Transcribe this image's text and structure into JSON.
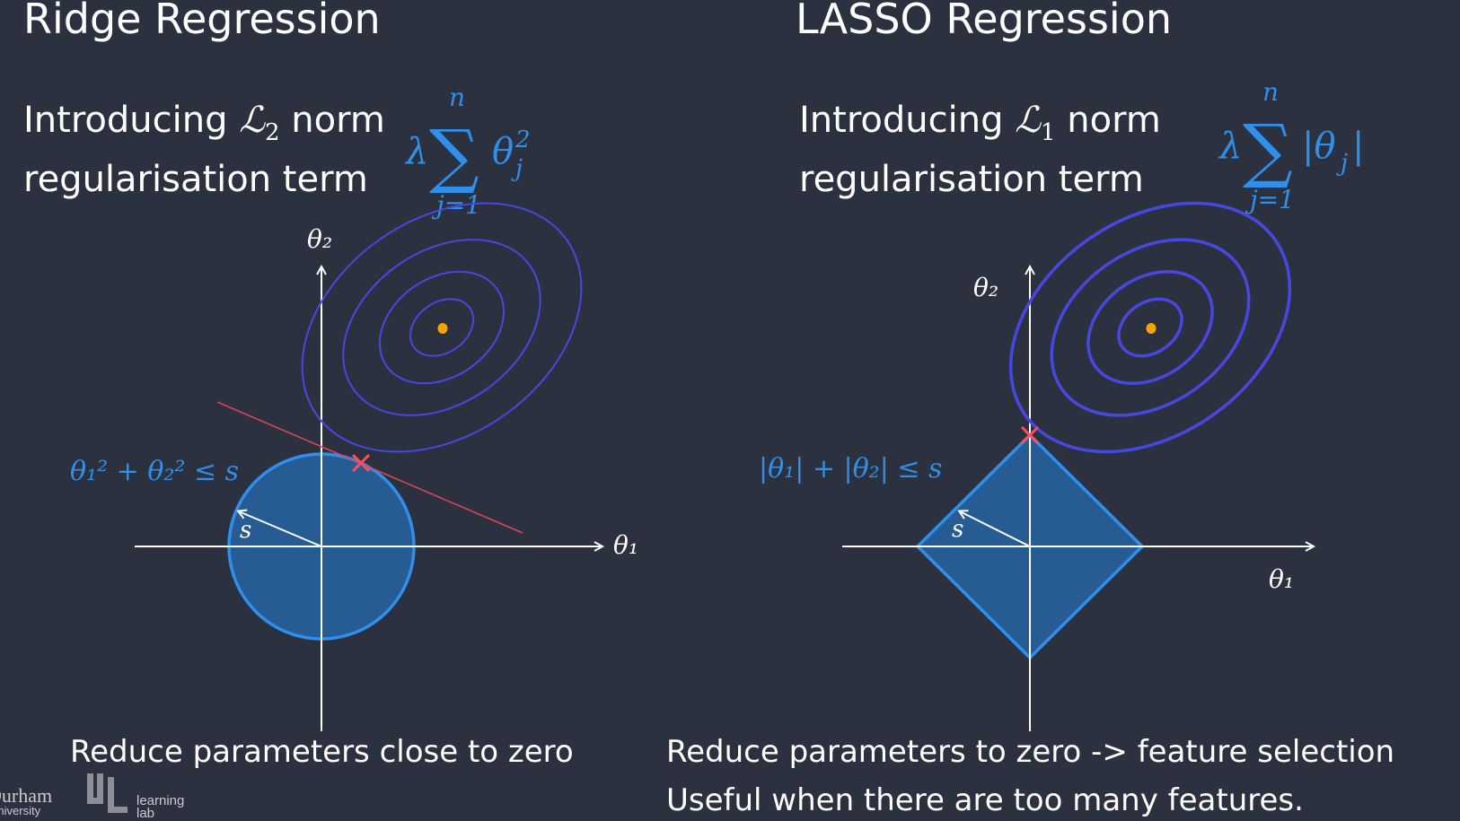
{
  "ridge": {
    "title": "Ridge Regression",
    "intro_line1": "Introducing",
    "norm_symbol": "ℒ",
    "norm_sub": "2",
    "intro_norm_word": "norm",
    "intro_line2": "regularisation term",
    "penalty_lambda": "λ",
    "penalty_sigma": "∑",
    "penalty_upper": "n",
    "penalty_lower": "j=1",
    "penalty_term": "θ",
    "penalty_term_sup": "2",
    "penalty_term_sub": "j",
    "constraint_label": "θ₁² + θ₂² ≤ s",
    "radius_label": "s",
    "axis_x_label": "θ₁",
    "axis_y_label": "θ₂",
    "caption": "Reduce parameters close to zero"
  },
  "lasso": {
    "title": "LASSO Regression",
    "intro_line1": "Introducing",
    "norm_symbol": "ℒ",
    "norm_sub": "1",
    "intro_norm_word": "norm",
    "intro_line2": "regularisation term",
    "penalty_lambda": "λ",
    "penalty_sigma": "∑",
    "penalty_upper": "n",
    "penalty_lower": "j=1",
    "penalty_term": "|θ",
    "penalty_term_sub": "j",
    "penalty_term_close": "|",
    "constraint_label": "|θ₁| + |θ₂| ≤ s",
    "radius_label": "s",
    "axis_x_label": "θ₁",
    "axis_y_label": "θ₂",
    "caption_line1": "Reduce parameters to zero -> feature selection",
    "caption_line2": "Useful when there are too many features."
  },
  "footer": {
    "university": "Durham",
    "university_sub": "University",
    "lab_line1": "learning",
    "lab_line2": "lab"
  },
  "colors": {
    "background": "#2c3140",
    "accent_blue": "#2f8fea",
    "constraint_fill": "#275b94",
    "contour": "#4848e0",
    "tangent_line": "#e0455a",
    "optimum": "#f5a300",
    "marker": "#ff4d5a"
  }
}
